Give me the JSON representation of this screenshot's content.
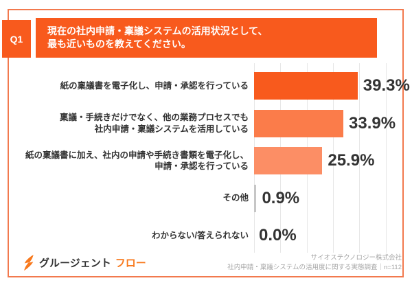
{
  "header": {
    "badge_label": "Q1",
    "question_lines": [
      "現在の社内申請・稟議システムの活用状況として、",
      "最も近いものを教えてください。"
    ]
  },
  "chart_data": {
    "type": "bar",
    "orientation": "horizontal",
    "title": "",
    "xlabel": "",
    "ylabel": "",
    "categories": [
      "紙の稟議書を電子化し、申請・承認を行っている",
      "稟議・手続きだけでなく、他の業務プロセスでも\n社内申請・稟議システムを活用している",
      "紙の稟議書に加え、社内の申請や手続き書類を電子化し、\n申請・承認を行っている",
      "その他",
      "わからない/答えられない"
    ],
    "values": [
      39.3,
      33.9,
      25.9,
      0.9,
      0.0
    ],
    "value_labels": [
      "39.3%",
      "33.9%",
      "25.9%",
      "0.9%",
      "0.0%"
    ],
    "bar_colors": [
      "#f85a1d",
      "#fb7c4a",
      "#fc8e65",
      "#c6c6c6",
      "#c6c6c6"
    ],
    "xlim": [
      0,
      55
    ],
    "gridlines": [
      0,
      10,
      20,
      30,
      40,
      50
    ],
    "grid": true,
    "legend": false
  },
  "footer": {
    "logo_icon": "lightning-swoosh-icon",
    "logo_text_dark": "グルージェント",
    "logo_text_accent": "フロー",
    "source_lines": [
      "サイオステクノロジー株式会社",
      "社内申請・稟議システムの活用度に関する実態調査｜n=112"
    ]
  },
  "colors": {
    "accent": "#f85a1d",
    "frame_border": "#f2794e",
    "logo_accent": "#f8791d",
    "grid": "#e7e7e7",
    "label_text": "#333333",
    "source_text": "#a5a5a5"
  }
}
